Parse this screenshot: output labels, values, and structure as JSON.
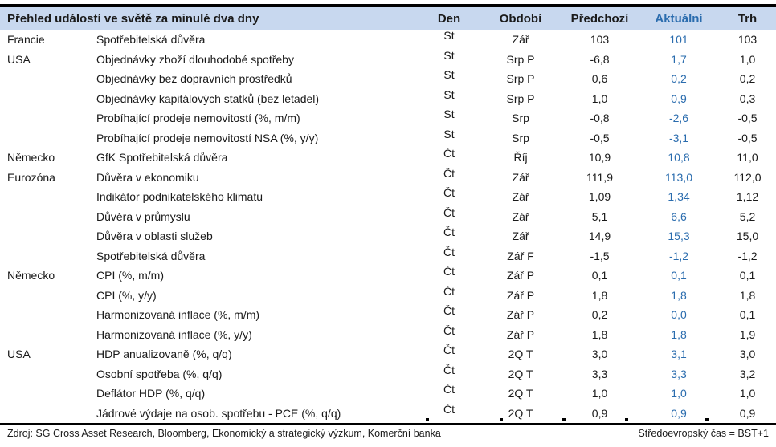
{
  "table": {
    "title": "Přehled událostí ve světě za minulé dva dny",
    "columns": {
      "den": "Den",
      "obdobi": "Období",
      "predchozi": "Předchozí",
      "aktualni": "Aktuální",
      "trh": "Trh"
    },
    "rows": [
      {
        "country": "Francie",
        "event": "Spotřebitelská důvěra",
        "den": "St",
        "obdobi": "Zář",
        "predchozi": "103",
        "aktualni": "101",
        "trh": "103"
      },
      {
        "country": "USA",
        "event": "Objednávky zboží dlouhodobé spotřeby",
        "den": "St",
        "obdobi": "Srp P",
        "predchozi": "-6,8",
        "aktualni": "1,7",
        "trh": "1,0"
      },
      {
        "country": "",
        "event": "Objednávky bez dopravních prostředků",
        "den": "St",
        "obdobi": "Srp P",
        "predchozi": "0,6",
        "aktualni": "0,2",
        "trh": "0,2"
      },
      {
        "country": "",
        "event": "Objednávky kapitálových statků (bez letadel)",
        "den": "St",
        "obdobi": "Srp P",
        "predchozi": "1,0",
        "aktualni": "0,9",
        "trh": "0,3"
      },
      {
        "country": "",
        "event": "Probíhající prodeje nemovitostí (%, m/m)",
        "den": "St",
        "obdobi": "Srp",
        "predchozi": "-0,8",
        "aktualni": "-2,6",
        "trh": "-0,5"
      },
      {
        "country": "",
        "event": "Probíhající prodeje nemovitostí NSA (%, y/y)",
        "den": "St",
        "obdobi": "Srp",
        "predchozi": "-0,5",
        "aktualni": "-3,1",
        "trh": "-0,5"
      },
      {
        "country": "Německo",
        "event": "GfK Spotřebitelská důvěra",
        "den": "Čt",
        "obdobi": "Říj",
        "predchozi": "10,9",
        "aktualni": "10,8",
        "trh": "11,0"
      },
      {
        "country": "Eurozóna",
        "event": "Důvěra v ekonomiku",
        "den": "Čt",
        "obdobi": "Zář",
        "predchozi": "111,9",
        "aktualni": "113,0",
        "trh": "112,0"
      },
      {
        "country": "",
        "event": "Indikátor podnikatelského klimatu",
        "den": "Čt",
        "obdobi": "Zář",
        "predchozi": "1,09",
        "aktualni": "1,34",
        "trh": "1,12"
      },
      {
        "country": "",
        "event": "Důvěra v průmyslu",
        "den": "Čt",
        "obdobi": "Zář",
        "predchozi": "5,1",
        "aktualni": "6,6",
        "trh": "5,2"
      },
      {
        "country": "",
        "event": "Důvěra v oblasti služeb",
        "den": "Čt",
        "obdobi": "Zář",
        "predchozi": "14,9",
        "aktualni": "15,3",
        "trh": "15,0"
      },
      {
        "country": "",
        "event": "Spotřebitelská důvěra",
        "den": "Čt",
        "obdobi": "Zář F",
        "predchozi": "-1,5",
        "aktualni": "-1,2",
        "trh": "-1,2"
      },
      {
        "country": "Německo",
        "event": "CPI (%, m/m)",
        "den": "Čt",
        "obdobi": "Zář P",
        "predchozi": "0,1",
        "aktualni": "0,1",
        "trh": "0,1"
      },
      {
        "country": "",
        "event": "CPI (%, y/y)",
        "den": "Čt",
        "obdobi": "Zář P",
        "predchozi": "1,8",
        "aktualni": "1,8",
        "trh": "1,8"
      },
      {
        "country": "",
        "event": "Harmonizovaná inflace (%, m/m)",
        "den": "Čt",
        "obdobi": "Zář P",
        "predchozi": "0,2",
        "aktualni": "0,0",
        "trh": "0,1"
      },
      {
        "country": "",
        "event": "Harmonizovaná inflace (%, y/y)",
        "den": "Čt",
        "obdobi": "Zář P",
        "predchozi": "1,8",
        "aktualni": "1,8",
        "trh": "1,9"
      },
      {
        "country": "USA",
        "event": "HDP anualizovaně (%, q/q)",
        "den": "Čt",
        "obdobi": "2Q T",
        "predchozi": "3,0",
        "aktualni": "3,1",
        "trh": "3,0"
      },
      {
        "country": "",
        "event": "Osobní spotřeba (%, q/q)",
        "den": "Čt",
        "obdobi": "2Q T",
        "predchozi": "3,3",
        "aktualni": "3,3",
        "trh": "3,2"
      },
      {
        "country": "",
        "event": "Deflátor HDP (%, q/q)",
        "den": "Čt",
        "obdobi": "2Q T",
        "predchozi": "1,0",
        "aktualni": "1,0",
        "trh": "1,0"
      },
      {
        "country": "",
        "event": "Jádrové výdaje na osob. spotřebu - PCE (%, q/q)",
        "den": "Čt",
        "obdobi": "2Q T",
        "predchozi": "0,9",
        "aktualni": "0,9",
        "trh": "0,9"
      }
    ]
  },
  "footer": {
    "source": "Zdroj: SG Cross Asset Research, Bloomberg, Ekonomický a strategický výzkum, Komerční banka",
    "timezone": "Středoevropský čas = BST+1"
  },
  "colors": {
    "header_bg": "#c8d8ef",
    "accent_blue": "#2a6cae",
    "text": "#1a1a1a",
    "rule": "#000000"
  }
}
